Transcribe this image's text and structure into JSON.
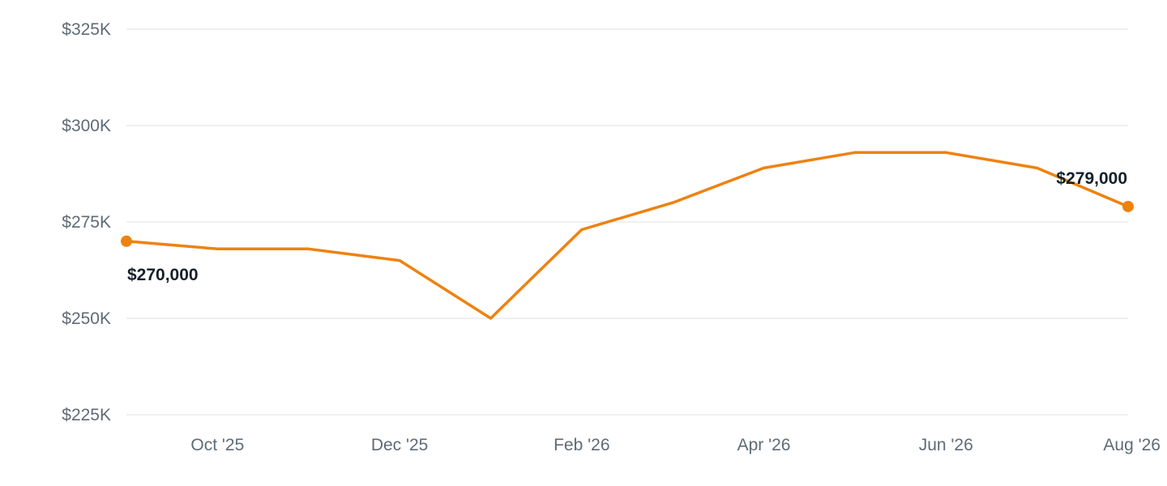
{
  "chart_data": {
    "type": "line",
    "x": [
      "2025-09",
      "2025-10",
      "2025-11",
      "2025-12",
      "2026-01",
      "2026-02",
      "2026-03",
      "2026-04",
      "2026-05",
      "2026-06",
      "2026-07",
      "2026-08"
    ],
    "series": [
      {
        "values": [
          270000,
          268000,
          268000,
          265000,
          250000,
          273000,
          280000,
          289000,
          293000,
          293000,
          289000,
          279000
        ]
      }
    ],
    "x_tick_labels": [
      {
        "x": "2025-10",
        "label": "Oct '25"
      },
      {
        "x": "2025-12",
        "label": "Dec '25"
      },
      {
        "x": "2026-02",
        "label": "Feb '26"
      },
      {
        "x": "2026-04",
        "label": "Apr '26"
      },
      {
        "x": "2026-06",
        "label": "Jun '26"
      },
      {
        "x": "2026-08",
        "label": "Aug '26"
      }
    ],
    "y_ticks": [
      {
        "value": 225000,
        "label": "$225K"
      },
      {
        "value": 250000,
        "label": "$250K"
      },
      {
        "value": 275000,
        "label": "$275K"
      },
      {
        "value": 300000,
        "label": "$300K"
      },
      {
        "value": 325000,
        "label": "$325K"
      }
    ],
    "ylim": [
      225000,
      325000
    ],
    "data_labels": [
      {
        "x": "2025-09",
        "value": 270000,
        "label": "$270,000"
      },
      {
        "x": "2026-08",
        "value": 279000,
        "label": "$279,000"
      }
    ],
    "title": "",
    "xlabel": "",
    "ylabel": "",
    "grid": true,
    "colors": {
      "line": "#ee8210",
      "grid": "#e3e6e9",
      "tick_text": "#5f6b76",
      "label_text": "#13202c"
    }
  }
}
